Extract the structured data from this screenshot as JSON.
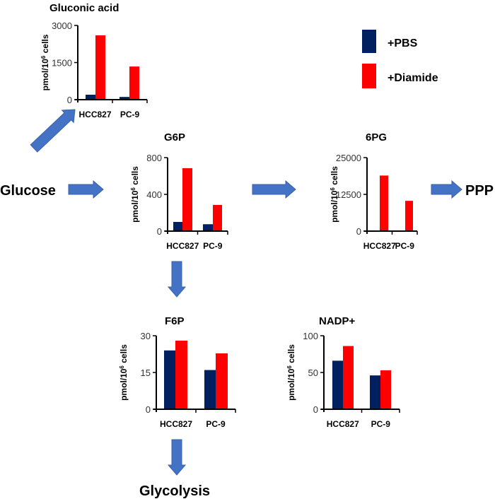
{
  "colors": {
    "pbs": "#002060",
    "diamide": "#ff0000",
    "arrow": "#4472c4"
  },
  "legend": [
    {
      "label": "+PBS",
      "color": "#002060"
    },
    {
      "label": "+Diamide",
      "color": "#ff0000"
    }
  ],
  "pathway": {
    "glucose": "Glucose",
    "ppp": "PPP",
    "glycolysis": "Glycolysis"
  },
  "chart_data": [
    {
      "id": "gluconic",
      "type": "bar",
      "title": "Gluconic acid",
      "ylabel": "pmol/10^6 cells",
      "ylim": [
        0,
        3000
      ],
      "yticks": [
        "0",
        "1500",
        "3000"
      ],
      "categories": [
        "HCC827",
        "PC-9"
      ],
      "series": [
        {
          "name": "+PBS",
          "values": [
            200,
            110
          ]
        },
        {
          "name": "+Diamide",
          "values": [
            2600,
            1340
          ]
        }
      ]
    },
    {
      "id": "g6p",
      "type": "bar",
      "title": "G6P",
      "ylabel": "pmol/10^6 cells",
      "ylim": [
        0,
        800
      ],
      "yticks": [
        "0",
        "400",
        "800"
      ],
      "categories": [
        "HCC827",
        "PC-9"
      ],
      "series": [
        {
          "name": "+PBS",
          "values": [
            100,
            75
          ]
        },
        {
          "name": "+Diamide",
          "values": [
            685,
            285
          ]
        }
      ]
    },
    {
      "id": "6pg",
      "type": "bar",
      "title": "6PG",
      "ylabel": "pmol/10^6 cells",
      "ylim": [
        0,
        25000
      ],
      "yticks": [
        "0",
        "12500",
        "25000"
      ],
      "categories": [
        "HCC827",
        "PC-9"
      ],
      "series": [
        {
          "name": "+PBS",
          "values": [
            0,
            0
          ]
        },
        {
          "name": "+Diamide",
          "values": [
            18900,
            10300
          ]
        }
      ]
    },
    {
      "id": "f6p",
      "type": "bar",
      "title": "F6P",
      "ylabel": "pmol/10^6 cells",
      "ylim": [
        0,
        30
      ],
      "yticks": [
        "0",
        "15",
        "30"
      ],
      "categories": [
        "HCC827",
        "PC-9"
      ],
      "series": [
        {
          "name": "+PBS",
          "values": [
            24,
            16
          ]
        },
        {
          "name": "+Diamide",
          "values": [
            28,
            22.8
          ]
        }
      ]
    },
    {
      "id": "nadp",
      "type": "bar",
      "title": "NADP+",
      "ylabel": "pmol/10^6 cells",
      "ylim": [
        0,
        100
      ],
      "yticks": [
        "0",
        "50",
        "100"
      ],
      "categories": [
        "HCC827",
        "PC-9"
      ],
      "series": [
        {
          "name": "+PBS",
          "values": [
            66,
            46
          ]
        },
        {
          "name": "+Diamide",
          "values": [
            86,
            53
          ]
        }
      ]
    }
  ]
}
